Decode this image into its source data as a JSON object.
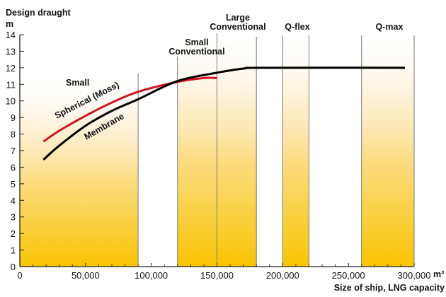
{
  "chart_data": {
    "type": "line",
    "ylabel": "Design draught",
    "yunit": "m",
    "xlabel": "Size of ship, LNG capacity",
    "xunit": "m³",
    "xlim": [
      0,
      300000
    ],
    "ylim": [
      0,
      14
    ],
    "xticks": [
      "0",
      "50,000",
      "100,000",
      "150,000",
      "200,000",
      "250,000",
      "300,000"
    ],
    "yticks": [
      "0",
      "1",
      "2",
      "3",
      "4",
      "5",
      "6",
      "7",
      "8",
      "9",
      "10",
      "11",
      "12",
      "13",
      "14"
    ],
    "grid": false,
    "bands": [
      {
        "label": "Small",
        "from": 0,
        "to": 90000,
        "shaded": true
      },
      {
        "label": "Small Conventional",
        "from": 120000,
        "to": 150000,
        "shaded": true
      },
      {
        "label": "Large Conventional",
        "from": 150000,
        "to": 180000,
        "shaded": true
      },
      {
        "label": "Q-flex",
        "from": 200000,
        "to": 220000,
        "shaded": true
      },
      {
        "label": "Q-max",
        "from": 260000,
        "to": 300000,
        "shaded": true
      }
    ],
    "series": [
      {
        "name": "Spherical (Moss)",
        "color": "#d0141e",
        "x": [
          18000,
          30000,
          50000,
          70000,
          90000,
          120000,
          140000,
          150000
        ],
        "y": [
          7.55,
          8.2,
          9.1,
          9.9,
          10.55,
          11.15,
          11.38,
          11.38
        ]
      },
      {
        "name": "Membrane",
        "color": "#000000",
        "x": [
          18000,
          30000,
          50000,
          70000,
          90000,
          120000,
          150000,
          170000,
          185000,
          293000
        ],
        "y": [
          6.45,
          7.3,
          8.5,
          9.4,
          10.1,
          11.2,
          11.7,
          11.95,
          12,
          12
        ]
      }
    ],
    "band_color": "#f9c400"
  }
}
